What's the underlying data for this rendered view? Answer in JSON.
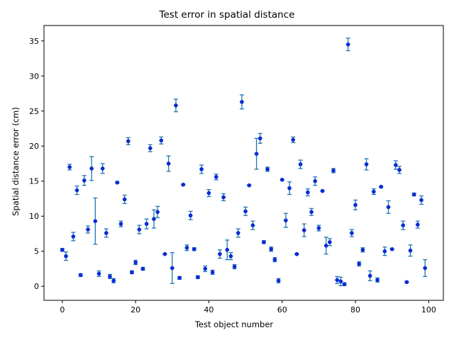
{
  "chart_data": {
    "type": "scatter",
    "title": "Test error in spatial distance",
    "xlabel": "Test object number",
    "ylabel": "Spatial distance error (cm)",
    "xlim": [
      -5,
      104
    ],
    "ylim": [
      -2,
      37.2
    ],
    "xticks": [
      0,
      20,
      40,
      60,
      80,
      100
    ],
    "yticks": [
      0,
      5,
      10,
      15,
      20,
      25,
      30,
      35
    ],
    "grid": false,
    "legend": "none",
    "colors": {
      "marker": "#0a2bd6",
      "errorbar": "#1f77b4",
      "axes": "#000000",
      "background": "#ffffff"
    },
    "series": [
      {
        "x": [
          0,
          1,
          2,
          3,
          4,
          5,
          6,
          7,
          8,
          9,
          10,
          11,
          12,
          13,
          14,
          15,
          16,
          17,
          18,
          19,
          20,
          21,
          22,
          23,
          24,
          25,
          26,
          27,
          28,
          29,
          30,
          31,
          32,
          33,
          34,
          35,
          36,
          37,
          38,
          39,
          40,
          41,
          42,
          43,
          44,
          45,
          46,
          47,
          48,
          49,
          50,
          51,
          52,
          53,
          54,
          55,
          56,
          57,
          58,
          59,
          60,
          61,
          62,
          63,
          64,
          65,
          66,
          67,
          68,
          69,
          70,
          71,
          72,
          73,
          74,
          75,
          76,
          77,
          78,
          79,
          80,
          81,
          82,
          83,
          84,
          85,
          86,
          87,
          88,
          89,
          90,
          91,
          92,
          93,
          94,
          95,
          96,
          97,
          98,
          99
        ],
        "y": [
          5.2,
          4.3,
          17.0,
          7.1,
          13.7,
          1.6,
          15.1,
          8.1,
          16.8,
          9.3,
          1.8,
          16.8,
          7.6,
          1.4,
          0.8,
          14.8,
          8.9,
          12.4,
          20.7,
          2.0,
          3.4,
          8.1,
          2.5,
          8.9,
          19.7,
          9.6,
          10.6,
          20.8,
          4.6,
          17.5,
          2.6,
          25.8,
          1.2,
          14.5,
          5.5,
          10.1,
          5.3,
          1.3,
          16.7,
          2.5,
          13.3,
          2.0,
          15.6,
          4.6,
          12.7,
          5.2,
          4.3,
          2.8,
          7.6,
          26.3,
          10.7,
          14.4,
          8.7,
          18.9,
          21.1,
          6.3,
          16.7,
          5.3,
          3.8,
          0.8,
          15.2,
          9.4,
          14.0,
          20.9,
          4.6,
          17.4,
          8.0,
          13.4,
          10.6,
          15.0,
          8.3,
          13.6,
          5.8,
          6.3,
          16.5,
          0.9,
          0.7,
          0.3,
          34.5,
          7.6,
          11.6,
          3.2,
          5.2,
          17.4,
          1.5,
          13.5,
          0.9,
          14.2,
          5.0,
          11.3,
          5.3,
          17.3,
          16.6,
          8.7,
          0.6,
          5.1,
          13.1,
          8.8,
          12.3,
          2.6
        ],
        "yerr": [
          0.2,
          0.6,
          0.4,
          0.6,
          0.6,
          0.2,
          0.7,
          0.5,
          1.7,
          3.3,
          0.4,
          0.7,
          0.6,
          0.3,
          0.3,
          0.1,
          0.4,
          0.6,
          0.5,
          0.2,
          0.3,
          0.6,
          0.2,
          0.7,
          0.5,
          1.3,
          0.8,
          0.5,
          0.1,
          1.1,
          2.2,
          0.9,
          0.2,
          0.1,
          0.4,
          0.6,
          0.2,
          0.2,
          0.6,
          0.4,
          0.5,
          0.3,
          0.4,
          0.6,
          0.5,
          1.4,
          0.5,
          0.3,
          0.6,
          1.0,
          0.6,
          0.1,
          0.6,
          2.2,
          0.7,
          0.2,
          0.3,
          0.3,
          0.3,
          0.3,
          0.1,
          1.0,
          0.9,
          0.4,
          0.1,
          0.6,
          0.9,
          0.5,
          0.5,
          0.6,
          0.4,
          0.1,
          1.2,
          0.5,
          0.3,
          0.5,
          0.6,
          0.2,
          0.9,
          0.5,
          0.7,
          0.3,
          0.3,
          0.8,
          0.7,
          0.4,
          0.3,
          0.1,
          0.6,
          0.9,
          0.1,
          0.6,
          0.5,
          0.6,
          0.1,
          0.8,
          0.2,
          0.5,
          0.6,
          1.2
        ]
      }
    ]
  }
}
